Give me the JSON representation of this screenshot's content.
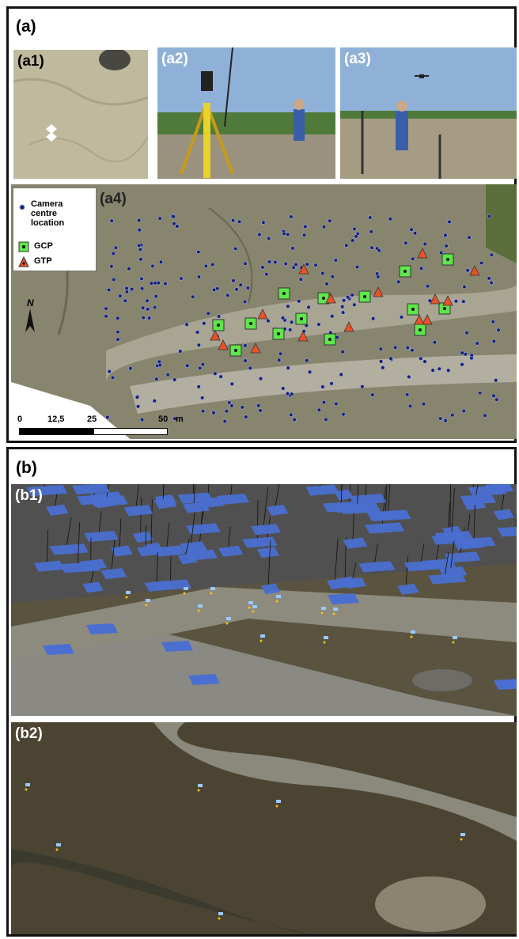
{
  "panel_a": {
    "label": "(a)"
  },
  "panel_b": {
    "label": "(b)"
  },
  "a1": {
    "label": "(a1)"
  },
  "a2": {
    "label": "(a2)"
  },
  "a3": {
    "label": "(a3)"
  },
  "a4": {
    "label": "(a4)"
  },
  "b1": {
    "label": "(b1)"
  },
  "b2": {
    "label": "(b2)"
  },
  "legend": {
    "camera": "Camera centre location",
    "gcp": "GCP",
    "gtp": "GTP"
  },
  "north": "N",
  "scale": {
    "t0": "0",
    "t1": "12,5",
    "t2": "25",
    "t3": "50",
    "unit": "m"
  },
  "colors": {
    "camera": "#1a1f6e",
    "gcp": "#5ee64a",
    "gtp": "#e8512a",
    "camera_plane": "#4a6fd0"
  }
}
